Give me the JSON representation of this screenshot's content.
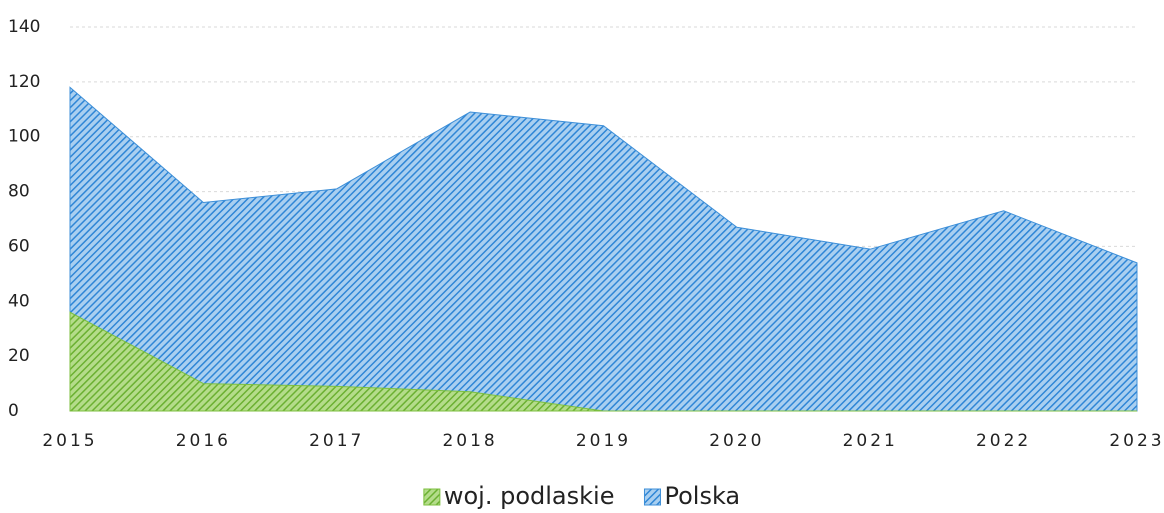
{
  "chart_data": {
    "type": "area",
    "categories": [
      "2015",
      "2016",
      "2017",
      "2018",
      "2019",
      "2020",
      "2021",
      "2022",
      "2023"
    ],
    "series": [
      {
        "name": "woj. podlaskie",
        "color": "#7cbf3f",
        "values": [
          36,
          10,
          9,
          7,
          0,
          0,
          0,
          0,
          0
        ]
      },
      {
        "name": "Polska",
        "color": "#3d8fd8",
        "values": [
          118,
          76,
          81,
          109,
          104,
          67,
          59,
          73,
          54
        ]
      }
    ],
    "ylim": [
      0,
      140
    ],
    "yticks": [
      0,
      20,
      40,
      60,
      80,
      100,
      120,
      140
    ],
    "grid": true,
    "legend": "bottom"
  }
}
